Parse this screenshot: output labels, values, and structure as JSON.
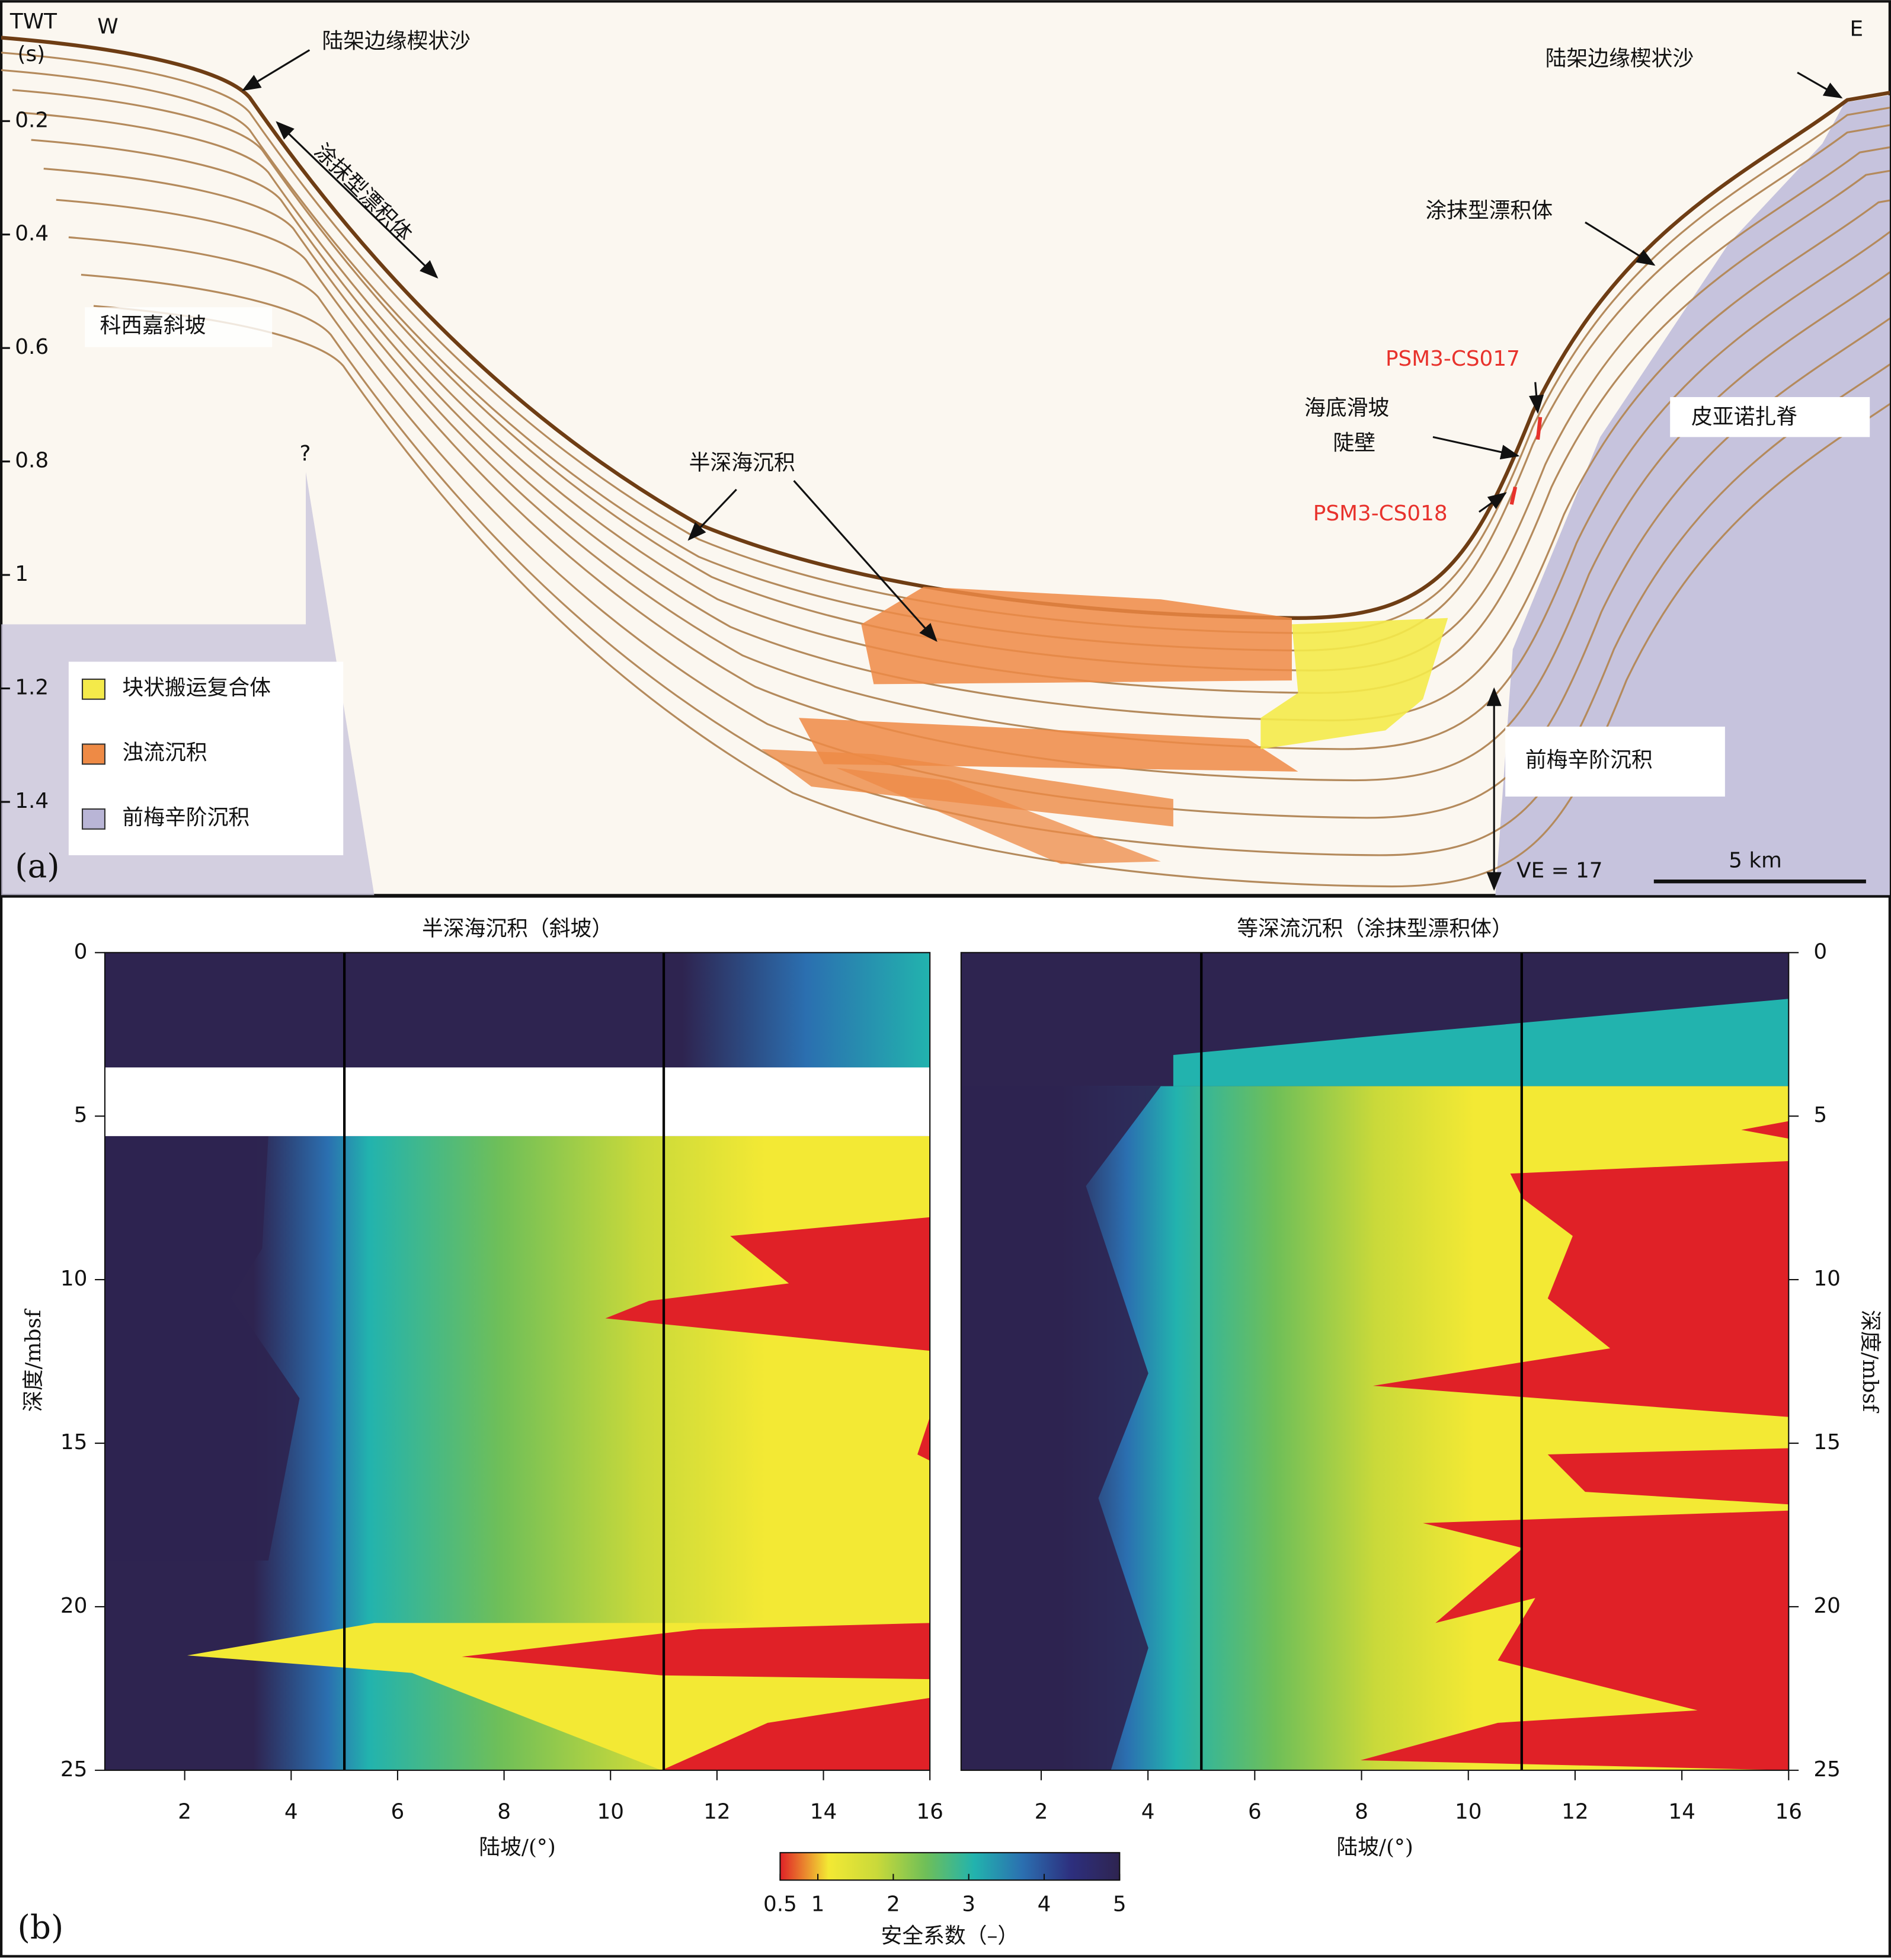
{
  "panel_a": {
    "label": "(a)",
    "y_axis_title": "TWT",
    "y_axis_unit": "(s)",
    "ylim": [
      0,
      1.56
    ],
    "yticks": [
      0.2,
      0.4,
      0.6,
      0.8,
      1.0,
      1.2,
      1.4
    ],
    "west": "W",
    "east": "E",
    "annotations": [
      "陆架边缘楔状沙",
      "涂抹型漂积体",
      "科西嘉斜坡",
      "?",
      "半深海沉积",
      "陆架边缘楔状沙",
      "涂抹型漂积体",
      "PSM3-CS017",
      "海底滑坡",
      "陡壁",
      "PSM3-CS018",
      "皮亚诺扎脊",
      "前梅辛阶沉积",
      "VE = 17",
      "5 km"
    ],
    "legend": [
      {
        "name": "块状搬运复合体",
        "color": "#f4ea4a"
      },
      {
        "name": "浊流沉积",
        "color": "#ee8a45"
      },
      {
        "name": "前梅辛阶沉积",
        "color": "#b9b5d6"
      }
    ]
  },
  "chart_data": [
    {
      "type": "contour",
      "title": "半深海沉积（斜坡）",
      "xlabel": "陆坡/(°)",
      "ylabel": "深度/mbsf",
      "y_axis_side": "left",
      "y_inverted": true,
      "xlim": [
        0.5,
        16
      ],
      "xticks": [
        2,
        4,
        6,
        8,
        10,
        12,
        14,
        16
      ],
      "ylim": [
        0,
        25
      ],
      "yticks": [
        0,
        5,
        10,
        15,
        20,
        25
      ],
      "vlines": [
        5,
        11
      ]
    },
    {
      "type": "contour",
      "title": "等深流沉积（涂抹型漂积体）",
      "xlabel": "陆坡/(°)",
      "ylabel": "深度/mbsf",
      "y_axis_side": "right",
      "y_inverted": true,
      "xlim": [
        0.5,
        16
      ],
      "xticks": [
        2,
        4,
        6,
        8,
        10,
        12,
        14,
        16
      ],
      "ylim": [
        0,
        25
      ],
      "yticks": [
        0,
        5,
        10,
        15,
        20,
        25
      ],
      "vlines": [
        5,
        11
      ]
    }
  ],
  "colorbar": {
    "title": "安全系数（–）",
    "clim": [
      0.5,
      5
    ],
    "ticks": [
      0.5,
      1,
      2,
      3,
      4,
      5
    ],
    "colors": [
      "#e02127",
      "#f3e934",
      "#c9d93a",
      "#6fbf58",
      "#22b3ae",
      "#2b6fb0",
      "#2d2f7e",
      "#2e2450"
    ]
  },
  "panel_b_label": "(b)"
}
